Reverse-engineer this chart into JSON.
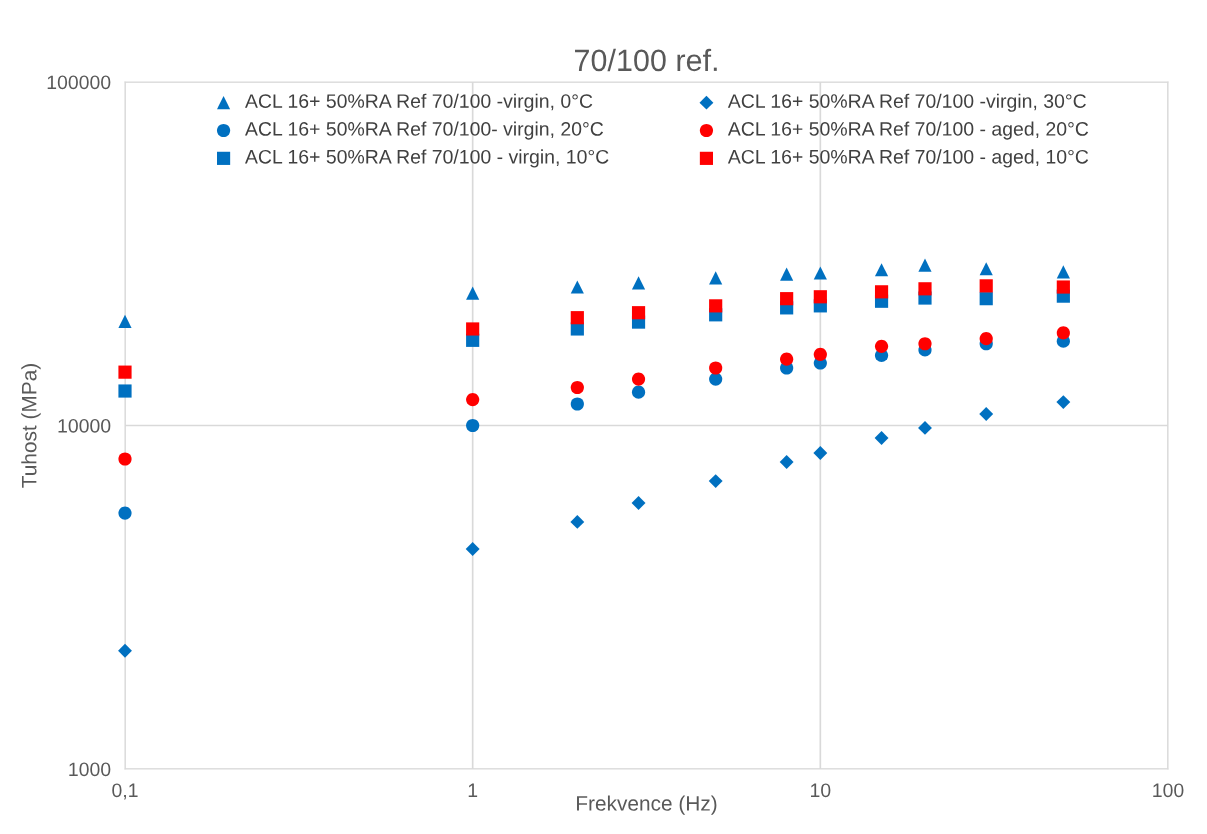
{
  "chart_data": {
    "type": "scatter",
    "title": "70/100 ref.",
    "xlabel": "Frekvence (Hz)",
    "ylabel": "Tuhost (MPa)",
    "log": "xy",
    "grid": true,
    "legend": "top",
    "x": [
      0.1,
      1,
      2,
      3,
      5,
      8,
      10,
      15,
      20,
      30,
      50
    ],
    "xlim": [
      0.1,
      100
    ],
    "xticks": [
      {
        "value": 0.1,
        "label": "0,1"
      },
      1,
      10,
      100
    ],
    "ylim": [
      1000,
      100000
    ],
    "yticks": [
      1000,
      10000,
      100000
    ],
    "series": [
      {
        "name": "ACL 16+ 50%RA Ref 70/100 -virgin, 0°C",
        "color": "#0070c0",
        "marker": "triangle",
        "values": [
          20100,
          24300,
          25300,
          26000,
          26900,
          27600,
          27800,
          28400,
          29300,
          28600,
          28000
        ]
      },
      {
        "name": "ACL 16+ 50%RA Ref 70/100- virgin, 20°C",
        "color": "#0070c0",
        "marker": "circle",
        "values": [
          5560,
          10000,
          11550,
          12500,
          13650,
          14700,
          15200,
          16000,
          16600,
          17300,
          17600
        ]
      },
      {
        "name": "ACL 16+ 50%RA Ref 70/100 - virgin, 10°C",
        "color": "#0070c0",
        "marker": "square",
        "values": [
          12600,
          17700,
          19100,
          20000,
          21000,
          22000,
          22300,
          23000,
          23500,
          23400,
          23800
        ]
      },
      {
        "name": "ACL 16+ 50%RA Ref 70/100 -virgin, 30°C",
        "color": "#0070c0",
        "marker": "diamond",
        "values": [
          2210,
          4370,
          5240,
          5950,
          6890,
          7830,
          8320,
          9200,
          9840,
          10800,
          11700
        ]
      },
      {
        "name": "ACL 16+ 50%RA Ref 70/100 - aged, 20°C",
        "color": "#ff0000",
        "marker": "circle",
        "values": [
          7990,
          11900,
          12900,
          13650,
          14700,
          15600,
          16100,
          17000,
          17300,
          17900,
          18600
        ]
      },
      {
        "name": "ACL 16+ 50%RA Ref 70/100 - aged, 10°C",
        "color": "#ff0000",
        "marker": "square",
        "values": [
          14300,
          19100,
          20600,
          21300,
          22300,
          23400,
          23700,
          24500,
          25000,
          25500,
          25300
        ]
      }
    ]
  }
}
